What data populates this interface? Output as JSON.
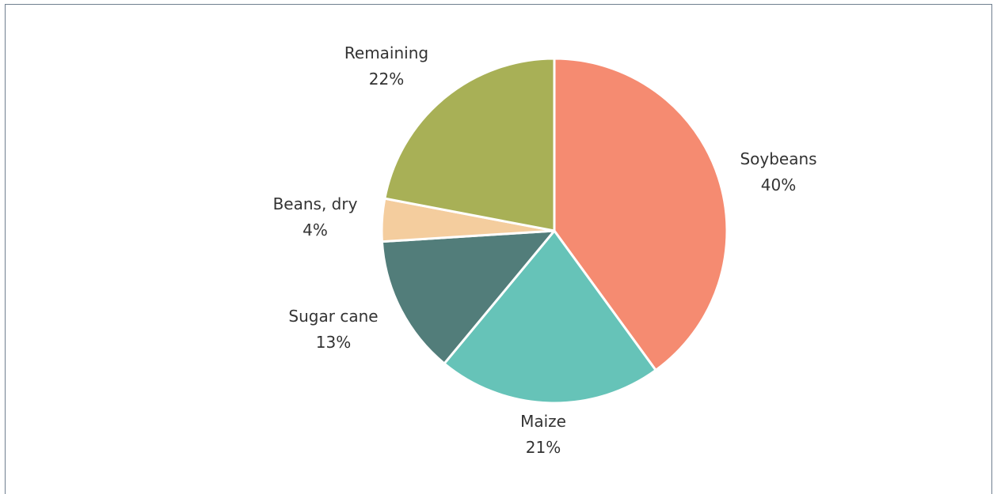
{
  "chart_data": {
    "type": "pie",
    "title": "",
    "slices": [
      {
        "label": "Soybeans",
        "pct_label": "40%",
        "value": 40,
        "color": "#f58b71"
      },
      {
        "label": "Maize",
        "pct_label": "21%",
        "value": 21,
        "color": "#66c3b8"
      },
      {
        "label": "Sugar cane",
        "pct_label": "13%",
        "value": 13,
        "color": "#527d7a"
      },
      {
        "label": "Beans, dry",
        "pct_label": "4%",
        "value": 4,
        "color": "#f4cd9e"
      },
      {
        "label": "Remaining",
        "pct_label": "22%",
        "value": 22,
        "color": "#a8b056"
      }
    ],
    "start_angle_deg": 0,
    "direction": "clockwise",
    "slice_border_color": "#ffffff"
  }
}
